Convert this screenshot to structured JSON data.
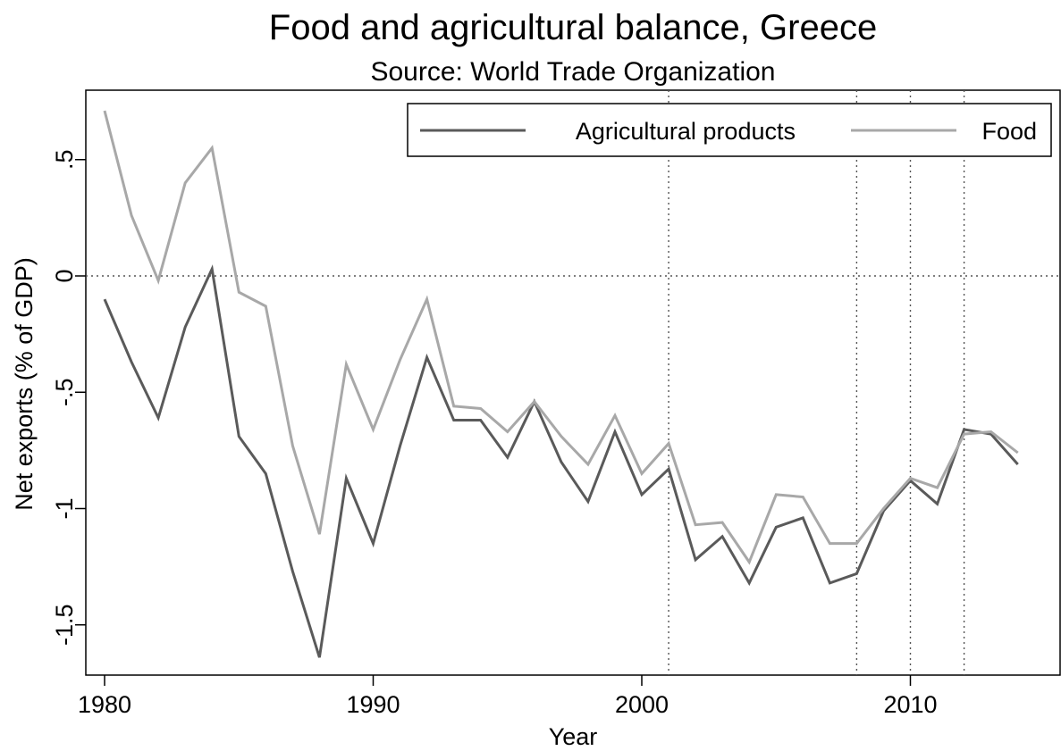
{
  "chart_data": {
    "type": "line",
    "title": "Food and agricultural balance, Greece",
    "subtitle": "Source: World Trade Organization",
    "xlabel": "Year",
    "ylabel": "Net exports (% of GDP)",
    "xlim": [
      1980,
      2015.7
    ],
    "ylim": [
      -1.72,
      0.8
    ],
    "xticks": [
      1980,
      1990,
      2000,
      2010
    ],
    "xtick_labels": [
      "1980",
      "1990",
      "2000",
      "2010"
    ],
    "yticks": [
      0.5,
      0,
      -0.5,
      -1,
      -1.5
    ],
    "ytick_labels": [
      ".5",
      "0",
      "-.5",
      "-1",
      "-1.5"
    ],
    "reference_hlines": [
      0
    ],
    "reference_vlines": [
      2001,
      2008,
      2010,
      2012
    ],
    "legend_position": "top-right",
    "grid": false,
    "x": [
      1980,
      1981,
      1982,
      1983,
      1984,
      1985,
      1986,
      1987,
      1988,
      1989,
      1990,
      1991,
      1992,
      1993,
      1994,
      1995,
      1996,
      1997,
      1998,
      1999,
      2000,
      2001,
      2002,
      2003,
      2004,
      2005,
      2006,
      2007,
      2008,
      2009,
      2010,
      2011,
      2012,
      2013,
      2014
    ],
    "series": [
      {
        "name": "Agricultural products",
        "color": "#5a5a5a",
        "values": [
          -0.1,
          -0.37,
          -0.61,
          -0.22,
          0.03,
          -0.69,
          -0.85,
          -1.27,
          -1.64,
          -0.87,
          -1.15,
          -0.73,
          -0.35,
          -0.62,
          -0.62,
          -0.78,
          -0.54,
          -0.8,
          -0.97,
          -0.67,
          -0.94,
          -0.83,
          -1.22,
          -1.12,
          -1.32,
          -1.08,
          -1.04,
          -1.32,
          -1.28,
          -1.01,
          -0.88,
          -0.98,
          -0.66,
          -0.68,
          -0.81
        ]
      },
      {
        "name": "Food",
        "color": "#a8a8a8",
        "values": [
          0.71,
          0.26,
          -0.02,
          0.4,
          0.55,
          -0.07,
          -0.13,
          -0.73,
          -1.11,
          -0.38,
          -0.66,
          -0.36,
          -0.1,
          -0.56,
          -0.57,
          -0.67,
          -0.54,
          -0.69,
          -0.81,
          -0.6,
          -0.85,
          -0.72,
          -1.07,
          -1.06,
          -1.23,
          -0.94,
          -0.95,
          -1.15,
          -1.15,
          -1.0,
          -0.87,
          -0.91,
          -0.68,
          -0.67,
          -0.76
        ]
      }
    ]
  }
}
